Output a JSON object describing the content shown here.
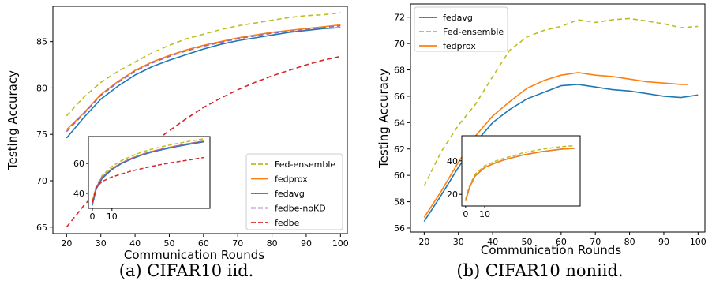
{
  "charts": [
    {
      "type": "line",
      "xlabel": "Communication Rounds",
      "ylabel": "Testing Accuracy",
      "xlim": [
        16,
        102
      ],
      "ylim": [
        64.3,
        88.8
      ],
      "xticks": [
        20,
        30,
        40,
        50,
        60,
        70,
        80,
        90,
        100
      ],
      "yticks": [
        65,
        70,
        75,
        80,
        85
      ],
      "legend_position": "lower-right",
      "caption": "(a) CIFAR10 iid.",
      "series": [
        {
          "name": "Fed-ensemble",
          "color": "#bcbd22",
          "dash": "dashed",
          "x": [
            20,
            25,
            30,
            35,
            40,
            45,
            50,
            55,
            60,
            65,
            70,
            75,
            80,
            85,
            90,
            95,
            100
          ],
          "y": [
            77.0,
            79.0,
            80.6,
            81.8,
            82.8,
            83.8,
            84.6,
            85.3,
            85.8,
            86.3,
            86.7,
            87.0,
            87.3,
            87.6,
            87.8,
            87.9,
            88.1
          ]
        },
        {
          "name": "fedprox",
          "color": "#ff7f0e",
          "dash": "solid",
          "x": [
            20,
            25,
            30,
            35,
            40,
            45,
            50,
            55,
            60,
            65,
            70,
            75,
            80,
            85,
            90,
            95,
            100
          ],
          "y": [
            75.5,
            77.3,
            79.3,
            80.7,
            81.9,
            82.8,
            83.5,
            84.1,
            84.6,
            85.0,
            85.4,
            85.7,
            86.0,
            86.2,
            86.4,
            86.6,
            86.8
          ]
        },
        {
          "name": "fedavg",
          "color": "#1f77b4",
          "dash": "solid",
          "x": [
            20,
            25,
            30,
            35,
            40,
            45,
            50,
            55,
            60,
            65,
            70,
            75,
            80,
            85,
            90,
            95,
            100
          ],
          "y": [
            74.6,
            76.8,
            78.8,
            80.2,
            81.4,
            82.3,
            83.0,
            83.6,
            84.2,
            84.7,
            85.1,
            85.4,
            85.7,
            86.0,
            86.2,
            86.4,
            86.5
          ]
        },
        {
          "name": "fedbe-noKD",
          "color": "#9467bd",
          "dash": "dashed",
          "x": [
            20,
            25,
            30,
            35,
            40,
            45,
            50,
            55,
            60,
            65,
            70,
            75,
            80,
            85,
            90,
            95,
            100
          ],
          "y": [
            75.3,
            77.2,
            79.2,
            80.6,
            81.8,
            82.7,
            83.4,
            84.0,
            84.5,
            84.9,
            85.3,
            85.6,
            85.9,
            86.1,
            86.3,
            86.5,
            86.7
          ]
        },
        {
          "name": "fedbe",
          "color": "#d62728",
          "dash": "dashed",
          "x": [
            20,
            25,
            30,
            35,
            40,
            45,
            50,
            55,
            60,
            65,
            70,
            75,
            80,
            85,
            90,
            95,
            100
          ],
          "y": [
            65.0,
            67.3,
            69.3,
            71.0,
            72.5,
            74.0,
            75.4,
            76.7,
            77.9,
            78.9,
            79.8,
            80.6,
            81.3,
            81.9,
            82.5,
            83.0,
            83.4
          ]
        }
      ],
      "inset": {
        "xlim": [
          -2,
          60
        ],
        "ylim": [
          30,
          78
        ],
        "xticks": [
          0,
          10
        ],
        "yticks": [
          40,
          60
        ],
        "series": [
          {
            "name": "Fed-ensemble",
            "color": "#bcbd22",
            "dash": "dashed",
            "x": [
              0,
              2,
              5,
              10,
              15,
              20,
              25,
              30,
              40,
              50,
              57
            ],
            "y": [
              35,
              45,
              52,
              58,
              62,
              65,
              67.5,
              69.5,
              72.5,
              75,
              76.5
            ]
          },
          {
            "name": "fedprox",
            "color": "#ff7f0e",
            "dash": "solid",
            "x": [
              0,
              2,
              5,
              10,
              15,
              20,
              25,
              30,
              40,
              50,
              57
            ],
            "y": [
              33,
              44,
              51,
              56.5,
              60.5,
              63.5,
              66,
              68,
              71,
              73.5,
              75
            ]
          },
          {
            "name": "fedavg",
            "color": "#1f77b4",
            "dash": "solid",
            "x": [
              0,
              2,
              5,
              10,
              15,
              20,
              25,
              30,
              40,
              50,
              57
            ],
            "y": [
              32,
              43,
              50,
              56,
              60,
              63,
              65.5,
              67.5,
              70.5,
              73,
              74.5
            ]
          },
          {
            "name": "fedbe-noKD",
            "color": "#9467bd",
            "dash": "dashed",
            "x": [
              0,
              2,
              5,
              10,
              15,
              20,
              25,
              30,
              40,
              50,
              57
            ],
            "y": [
              33,
              44,
              51,
              56.5,
              60.5,
              63.5,
              66,
              68,
              71,
              73.5,
              75
            ]
          },
          {
            "name": "fedbe",
            "color": "#d62728",
            "dash": "dashed",
            "x": [
              0,
              2,
              5,
              10,
              15,
              20,
              25,
              30,
              40,
              50,
              57
            ],
            "y": [
              34,
              44,
              48,
              51,
              53,
              55,
              56.5,
              58,
              60.5,
              62.5,
              64
            ]
          }
        ]
      }
    },
    {
      "type": "line",
      "xlabel": "Communication Rounds",
      "ylabel": "Testing Accuracy",
      "xlim": [
        16,
        102
      ],
      "ylim": [
        55.7,
        73.0
      ],
      "xticks": [
        20,
        30,
        40,
        50,
        60,
        70,
        80,
        90,
        100
      ],
      "yticks": [
        56,
        58,
        60,
        62,
        64,
        66,
        68,
        70,
        72
      ],
      "legend_position": "top-left",
      "caption": "(b) CIFAR10 noniid.",
      "series": [
        {
          "name": "fedavg",
          "color": "#1f77b4",
          "dash": "solid",
          "x": [
            20,
            25,
            30,
            35,
            40,
            45,
            50,
            55,
            60,
            65,
            70,
            75,
            80,
            85,
            90,
            95,
            100
          ],
          "y": [
            56.5,
            58.5,
            60.6,
            62.5,
            64.0,
            65.0,
            65.8,
            66.3,
            66.8,
            66.9,
            66.7,
            66.5,
            66.4,
            66.2,
            66.0,
            65.9,
            66.1
          ]
        },
        {
          "name": "Fed-ensemble",
          "color": "#bcbd22",
          "dash": "dashed",
          "x": [
            20,
            25,
            30,
            35,
            40,
            45,
            50,
            55,
            60,
            65,
            70,
            75,
            80,
            85,
            90,
            95,
            100
          ],
          "y": [
            59.2,
            61.8,
            63.8,
            65.4,
            67.5,
            69.5,
            70.5,
            71.0,
            71.3,
            71.8,
            71.6,
            71.8,
            71.9,
            71.7,
            71.5,
            71.2,
            71.3
          ]
        },
        {
          "name": "fedprox",
          "color": "#ff7f0e",
          "dash": "solid",
          "x": [
            20,
            25,
            30,
            35,
            40,
            45,
            50,
            55,
            60,
            65,
            70,
            75,
            80,
            85,
            90,
            95,
            97
          ],
          "y": [
            56.8,
            58.8,
            61.0,
            63.0,
            64.5,
            65.6,
            66.6,
            67.2,
            67.6,
            67.8,
            67.6,
            67.5,
            67.3,
            67.1,
            67.0,
            66.9,
            66.9
          ]
        }
      ],
      "inset": {
        "xlim": [
          -2,
          60
        ],
        "ylim": [
          13,
          55
        ],
        "xticks": [
          0,
          10
        ],
        "yticks": [
          20,
          40
        ],
        "series": [
          {
            "name": "fedavg",
            "color": "#1f77b4",
            "dash": "solid",
            "x": [
              0,
              2,
              5,
              10,
              15,
              20,
              25,
              30,
              40,
              50,
              57
            ],
            "y": [
              16,
              24,
              31,
              36,
              38.5,
              40.5,
              42,
              43.5,
              45.5,
              47,
              47.5
            ]
          },
          {
            "name": "Fed-ensemble",
            "color": "#bcbd22",
            "dash": "dashed",
            "x": [
              0,
              2,
              5,
              10,
              15,
              20,
              25,
              30,
              40,
              50,
              57
            ],
            "y": [
              17,
              25,
              32,
              37,
              39.5,
              41.5,
              43,
              44.8,
              47,
              48.5,
              49
            ]
          },
          {
            "name": "fedprox",
            "color": "#ff7f0e",
            "dash": "solid",
            "x": [
              0,
              2,
              5,
              10,
              15,
              20,
              25,
              30,
              40,
              50,
              57
            ],
            "y": [
              16,
              24,
              31,
              36,
              38.5,
              40.5,
              42,
              43.5,
              45.5,
              47,
              47.5
            ]
          }
        ]
      }
    }
  ]
}
